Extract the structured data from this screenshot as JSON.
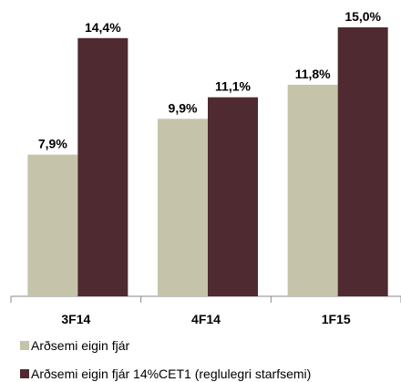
{
  "chart_data": {
    "type": "bar",
    "categories": [
      "3F14",
      "4F14",
      "1F15"
    ],
    "series": [
      {
        "name": "Arðsemi eigin fjár",
        "color": "#c5c4aa",
        "values": [
          7.9,
          9.9,
          11.8
        ],
        "value_labels": [
          "7,9%",
          "9,9%",
          "11,8%"
        ]
      },
      {
        "name": "Arðsemi eigin fjár 14%CET1 (reglulegri starfsemi)",
        "color": "#4f2a31",
        "values": [
          14.4,
          11.1,
          15.0
        ],
        "value_labels": [
          "14,4%",
          "11,1%",
          "15,0%"
        ]
      }
    ],
    "ylim": [
      0,
      15
    ]
  }
}
